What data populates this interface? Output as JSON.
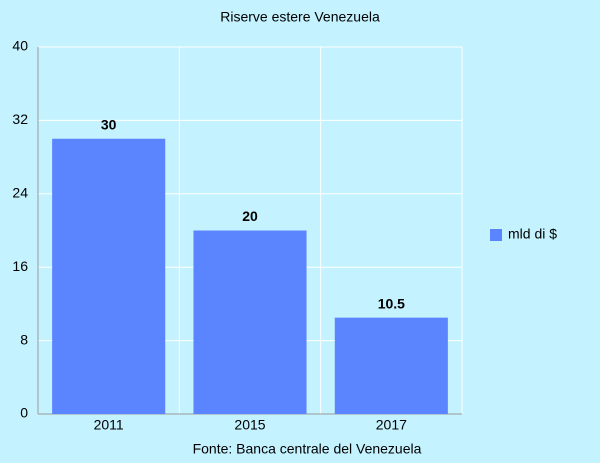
{
  "chart_data": {
    "type": "bar",
    "title": "Riserve estere Venezuela",
    "categories": [
      "2011",
      "2015",
      "2017"
    ],
    "series": [
      {
        "name": "mld di $",
        "color": "#5b85ff",
        "values": [
          30,
          20,
          10.5
        ]
      }
    ],
    "ylim": [
      0,
      40
    ],
    "yticks": [
      0,
      8,
      16,
      24,
      32,
      40
    ],
    "grid": true,
    "legend": "right",
    "source": "Fonte: Banca centrale del Venezuela"
  }
}
